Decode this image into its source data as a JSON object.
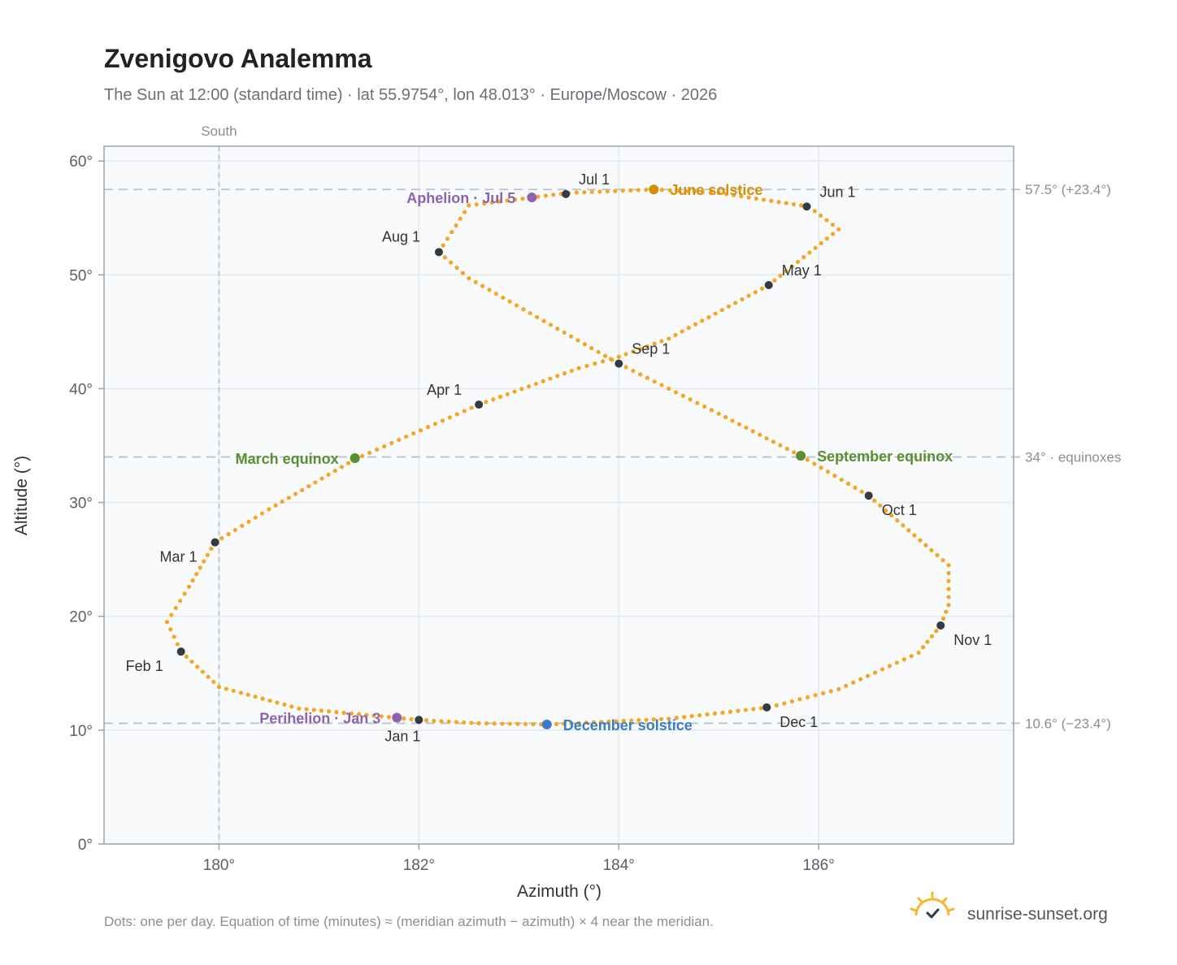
{
  "header": {
    "title": "Zvenigovo Analemma",
    "subtitle": "The Sun at 12:00 (standard time) · lat 55.9754°, lon 48.013° · Europe/Moscow · 2026"
  },
  "footer": {
    "note": "Dots: one per day. Equation of time (minutes) ≈ (meridian azimuth − azimuth) × 4 near the meridian.",
    "brand": "sunrise-sunset.org",
    "brand_icon": "sunrise-logo-icon"
  },
  "chart_data": {
    "type": "scatter",
    "xlabel": "Azimuth (°)",
    "ylabel": "Altitude (°)",
    "xlim": [
      178.85,
      187.95
    ],
    "ylim": [
      0,
      61.3
    ],
    "x_ticks": [
      180,
      182,
      184,
      186
    ],
    "x_tick_labels": [
      "180°",
      "182°",
      "184°",
      "186°"
    ],
    "y_ticks": [
      0,
      10,
      20,
      30,
      40,
      50,
      60
    ],
    "y_tick_labels": [
      "0°",
      "10°",
      "20°",
      "30°",
      "40°",
      "50°",
      "60°"
    ],
    "grid": true,
    "south_line": {
      "azimuth": 180,
      "label": "South"
    },
    "reference_lines": [
      {
        "altitude": 57.5,
        "label": "57.5° (+23.4°)"
      },
      {
        "altitude": 34.0,
        "label": "34° · equinoxes"
      },
      {
        "altitude": 10.6,
        "label": "10.6° (−23.4°)"
      }
    ],
    "series": [
      {
        "type": "daily-path",
        "color": "#f5a623",
        "points": [
          [
            182.0,
            10.9
          ],
          [
            180.8,
            11.9
          ],
          [
            180.0,
            13.8
          ],
          [
            179.62,
            16.9
          ],
          [
            179.48,
            19.5
          ],
          [
            179.7,
            22.6
          ],
          [
            179.96,
            26.5
          ],
          [
            180.5,
            29.4
          ],
          [
            181.36,
            33.8
          ],
          [
            181.8,
            35.5
          ],
          [
            182.6,
            38.6
          ],
          [
            183.6,
            41.8
          ],
          [
            184.0,
            42.8
          ],
          [
            184.5,
            44.4
          ],
          [
            185.5,
            49.1
          ],
          [
            186.2,
            54.0
          ],
          [
            185.9,
            56.0
          ],
          [
            185.0,
            57.2
          ],
          [
            184.35,
            57.5
          ],
          [
            183.5,
            57.2
          ],
          [
            182.5,
            56.1
          ],
          [
            182.2,
            52.0
          ],
          [
            182.5,
            49.7
          ],
          [
            184.0,
            42.2
          ],
          [
            185.0,
            37.8
          ],
          [
            185.82,
            34.1
          ],
          [
            186.5,
            30.6
          ],
          [
            187.3,
            24.5
          ],
          [
            187.3,
            21.0
          ],
          [
            187.22,
            19.2
          ],
          [
            187.0,
            16.8
          ],
          [
            186.2,
            13.6
          ],
          [
            185.5,
            12.0
          ],
          [
            184.5,
            11.0
          ],
          [
            183.3,
            10.5
          ],
          [
            182.6,
            10.6
          ],
          [
            182.0,
            10.9
          ]
        ]
      }
    ],
    "month_markers": [
      {
        "label": "Jan 1",
        "az": 182.0,
        "alt": 10.9
      },
      {
        "label": "Feb 1",
        "az": 179.62,
        "alt": 16.9
      },
      {
        "label": "Mar 1",
        "az": 179.96,
        "alt": 26.5
      },
      {
        "label": "Apr 1",
        "az": 182.6,
        "alt": 38.6
      },
      {
        "label": "May 1",
        "az": 185.5,
        "alt": 49.1
      },
      {
        "label": "Jun 1",
        "az": 185.88,
        "alt": 56.0
      },
      {
        "label": "Jul 1",
        "az": 183.47,
        "alt": 57.1
      },
      {
        "label": "Aug 1",
        "az": 182.2,
        "alt": 52.0
      },
      {
        "label": "Sep 1",
        "az": 184.0,
        "alt": 42.2
      },
      {
        "label": "Oct 1",
        "az": 186.5,
        "alt": 30.6
      },
      {
        "label": "Nov 1",
        "az": 187.22,
        "alt": 19.2
      },
      {
        "label": "Dec 1",
        "az": 185.48,
        "alt": 12.0
      }
    ],
    "events": [
      {
        "label": "June solstice",
        "az": 184.35,
        "alt": 57.5,
        "color": "#d4900a"
      },
      {
        "label": "Aphelion · Jul 5",
        "az": 183.13,
        "alt": 56.8,
        "color": "#8e62b0"
      },
      {
        "label": "March equinox",
        "az": 181.36,
        "alt": 33.9,
        "color": "#5a8f2f"
      },
      {
        "label": "September equinox",
        "az": 185.82,
        "alt": 34.1,
        "color": "#5a8f2f"
      },
      {
        "label": "Perihelion · Jan 3",
        "az": 181.78,
        "alt": 11.1,
        "color": "#8e62b0"
      },
      {
        "label": "December solstice",
        "az": 183.28,
        "alt": 10.5,
        "color": "#3a7cc7"
      }
    ]
  }
}
